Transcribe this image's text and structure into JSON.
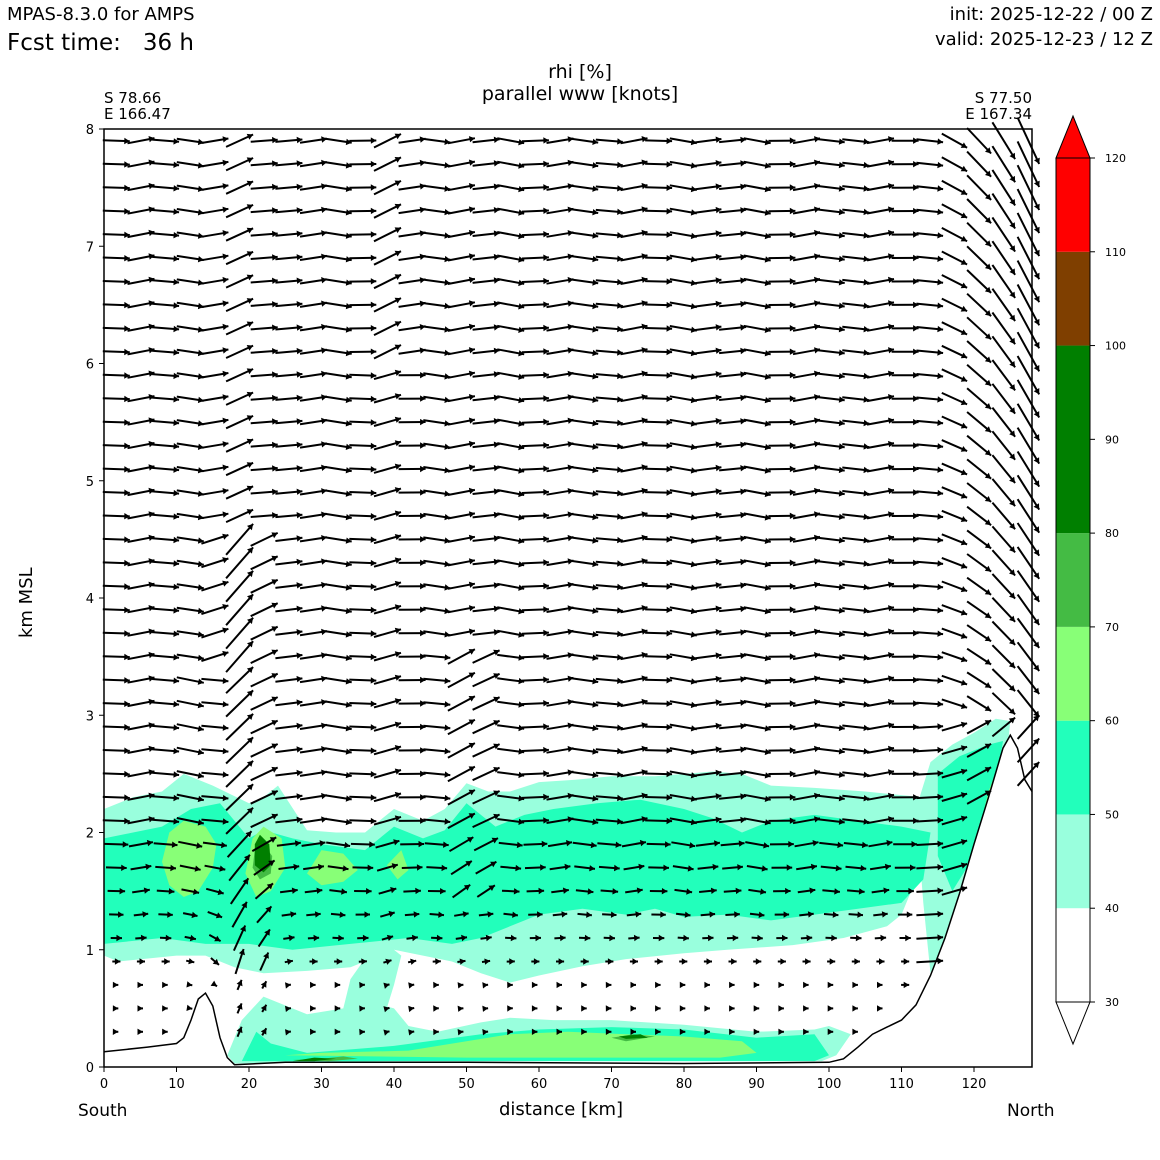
{
  "header": {
    "model": "MPAS-8.3.0 for AMPS",
    "fcst_label": "Fcst time:",
    "fcst_value": "36 h",
    "init": "init: 2025-12-22 / 00 Z",
    "valid": "valid: 2025-12-23 / 12 Z"
  },
  "corners": {
    "left_lat": "S 78.66",
    "left_lon": "E 166.47",
    "right_lat": "S 77.50",
    "right_lon": "E 167.34"
  },
  "directions": {
    "left": "South",
    "right": "North"
  },
  "chart_data": {
    "type": "heatmap",
    "title": "rhi [%]",
    "subtitle": "parallel www [knots]",
    "xlabel": "distance [km]",
    "ylabel": "km MSL",
    "xlim": [
      0,
      128
    ],
    "ylim": [
      0,
      8
    ],
    "xticks": [
      0,
      10,
      20,
      30,
      40,
      50,
      60,
      70,
      80,
      90,
      100,
      110,
      120
    ],
    "yticks": [
      0,
      1,
      2,
      3,
      4,
      5,
      6,
      7,
      8
    ],
    "terrain": [
      [
        0,
        0.13
      ],
      [
        6,
        0.17
      ],
      [
        10,
        0.2
      ],
      [
        11,
        0.25
      ],
      [
        12,
        0.4
      ],
      [
        13,
        0.58
      ],
      [
        14,
        0.63
      ],
      [
        15,
        0.52
      ],
      [
        16,
        0.25
      ],
      [
        17,
        0.08
      ],
      [
        18,
        0.02
      ],
      [
        25,
        0.04
      ],
      [
        50,
        0.04
      ],
      [
        80,
        0.03
      ],
      [
        100,
        0.04
      ],
      [
        102,
        0.07
      ],
      [
        104,
        0.17
      ],
      [
        106,
        0.28
      ],
      [
        108,
        0.34
      ],
      [
        110,
        0.4
      ],
      [
        112,
        0.53
      ],
      [
        114,
        0.78
      ],
      [
        116,
        1.1
      ],
      [
        118,
        1.48
      ],
      [
        120,
        1.9
      ],
      [
        122,
        2.3
      ],
      [
        124,
        2.72
      ],
      [
        125,
        2.83
      ],
      [
        126,
        2.72
      ],
      [
        127,
        2.45
      ],
      [
        128,
        2.35
      ]
    ],
    "rh_regions": [
      {
        "level": 40,
        "polygon": [
          [
            0,
            0.95
          ],
          [
            2,
            0.9
          ],
          [
            10,
            0.95
          ],
          [
            14,
            0.95
          ],
          [
            18,
            0.85
          ],
          [
            22,
            0.8
          ],
          [
            28,
            0.82
          ],
          [
            34,
            0.85
          ],
          [
            38,
            0.95
          ],
          [
            40,
            1.0
          ],
          [
            48,
            0.9
          ],
          [
            52,
            0.8
          ],
          [
            56,
            0.72
          ],
          [
            60,
            0.78
          ],
          [
            66,
            0.86
          ],
          [
            72,
            0.92
          ],
          [
            80,
            0.97
          ],
          [
            86,
            1.0
          ],
          [
            95,
            1.04
          ],
          [
            102,
            1.1
          ],
          [
            108,
            1.2
          ],
          [
            110,
            1.3
          ],
          [
            112,
            1.6
          ],
          [
            113,
            2.1
          ],
          [
            113,
            2.3
          ],
          [
            105,
            2.35
          ],
          [
            98,
            2.38
          ],
          [
            92,
            2.4
          ],
          [
            88,
            2.5
          ],
          [
            84,
            2.52
          ],
          [
            80,
            2.5
          ],
          [
            76,
            2.48
          ],
          [
            70,
            2.48
          ],
          [
            65,
            2.45
          ],
          [
            60,
            2.43
          ],
          [
            56,
            2.35
          ],
          [
            53,
            2.35
          ],
          [
            50,
            2.42
          ],
          [
            47,
            2.2
          ],
          [
            44,
            2.1
          ],
          [
            40,
            2.2
          ],
          [
            36,
            2.0
          ],
          [
            32,
            2.0
          ],
          [
            28,
            2.02
          ],
          [
            24,
            2.4
          ],
          [
            22,
            2.3
          ],
          [
            20,
            2.25
          ],
          [
            15,
            2.4
          ],
          [
            11,
            2.5
          ],
          [
            8,
            2.35
          ],
          [
            4,
            2.3
          ],
          [
            0,
            2.2
          ]
        ]
      },
      {
        "level": 40,
        "polygon": [
          [
            112,
            2.2
          ],
          [
            114,
            2.6
          ],
          [
            117,
            2.75
          ],
          [
            120,
            2.85
          ],
          [
            123,
            2.97
          ],
          [
            125,
            2.95
          ],
          [
            124.6,
            2.7
          ],
          [
            122,
            2.3
          ],
          [
            120,
            1.9
          ],
          [
            118,
            1.5
          ],
          [
            116,
            1.1
          ],
          [
            114,
            0.8
          ],
          [
            113,
            1.4
          ]
        ]
      },
      {
        "level": 40,
        "polygon": [
          [
            17,
            0.1
          ],
          [
            19,
            0.4
          ],
          [
            22,
            0.6
          ],
          [
            24,
            0.55
          ],
          [
            28,
            0.45
          ],
          [
            33,
            0.5
          ],
          [
            37,
            0.55
          ],
          [
            40,
            0.5
          ],
          [
            42,
            0.35
          ],
          [
            46,
            0.3
          ],
          [
            52,
            0.38
          ],
          [
            56,
            0.42
          ],
          [
            62,
            0.4
          ],
          [
            70,
            0.4
          ],
          [
            80,
            0.36
          ],
          [
            90,
            0.3
          ],
          [
            98,
            0.32
          ],
          [
            100,
            0.35
          ],
          [
            103,
            0.28
          ],
          [
            101,
            0.1
          ],
          [
            99,
            0.05
          ],
          [
            40,
            0.05
          ],
          [
            18,
            0.03
          ]
        ]
      },
      {
        "level": 40,
        "polygon": [
          [
            38,
            0.3
          ],
          [
            40,
            0.7
          ],
          [
            41,
            0.95
          ],
          [
            38,
            1.1
          ],
          [
            34,
            0.75
          ],
          [
            33,
            0.5
          ]
        ]
      },
      {
        "level": 50,
        "polygon": [
          [
            0,
            1.05
          ],
          [
            8,
            1.1
          ],
          [
            14,
            1.05
          ],
          [
            20,
            1.05
          ],
          [
            26,
            1.0
          ],
          [
            34,
            1.05
          ],
          [
            42,
            1.1
          ],
          [
            48,
            1.05
          ],
          [
            52,
            1.1
          ],
          [
            56,
            1.2
          ],
          [
            60,
            1.3
          ],
          [
            66,
            1.35
          ],
          [
            72,
            1.3
          ],
          [
            76,
            1.35
          ],
          [
            80,
            1.28
          ],
          [
            86,
            1.3
          ],
          [
            92,
            1.25
          ],
          [
            98,
            1.3
          ],
          [
            104,
            1.35
          ],
          [
            110,
            1.4
          ],
          [
            113,
            1.6
          ],
          [
            114,
            2.0
          ],
          [
            110,
            2.05
          ],
          [
            104,
            2.1
          ],
          [
            98,
            2.15
          ],
          [
            92,
            2.1
          ],
          [
            88,
            2.0
          ],
          [
            84,
            2.12
          ],
          [
            80,
            2.2
          ],
          [
            74,
            2.28
          ],
          [
            68,
            2.25
          ],
          [
            62,
            2.2
          ],
          [
            58,
            2.15
          ],
          [
            54,
            2.05
          ],
          [
            50,
            2.25
          ],
          [
            47,
            2.02
          ],
          [
            44,
            1.95
          ],
          [
            40,
            2.05
          ],
          [
            36,
            1.85
          ],
          [
            30,
            1.9
          ],
          [
            26,
            1.95
          ],
          [
            22,
            2.02
          ],
          [
            20,
            1.95
          ],
          [
            16,
            2.25
          ],
          [
            12,
            2.2
          ],
          [
            8,
            2.05
          ],
          [
            4,
            2.0
          ],
          [
            0,
            1.95
          ]
        ]
      },
      {
        "level": 50,
        "polygon": [
          [
            115,
            2.5
          ],
          [
            118,
            2.65
          ],
          [
            122,
            2.75
          ],
          [
            124,
            2.78
          ],
          [
            123.5,
            2.6
          ],
          [
            121,
            2.1
          ],
          [
            119,
            1.7
          ],
          [
            117,
            1.5
          ],
          [
            115,
            1.8
          ]
        ]
      },
      {
        "level": 50,
        "polygon": [
          [
            19,
            0.05
          ],
          [
            21,
            0.3
          ],
          [
            23,
            0.2
          ],
          [
            28,
            0.12
          ],
          [
            40,
            0.18
          ],
          [
            52,
            0.28
          ],
          [
            60,
            0.32
          ],
          [
            70,
            0.34
          ],
          [
            80,
            0.32
          ],
          [
            90,
            0.25
          ],
          [
            98,
            0.28
          ],
          [
            100,
            0.1
          ],
          [
            98,
            0.05
          ],
          [
            40,
            0.05
          ]
        ]
      },
      {
        "level": 60,
        "polygon": [
          [
            8,
            1.75
          ],
          [
            9,
            1.55
          ],
          [
            11,
            1.45
          ],
          [
            13,
            1.5
          ],
          [
            15,
            1.7
          ],
          [
            15.5,
            1.9
          ],
          [
            14,
            2.05
          ],
          [
            11,
            2.1
          ],
          [
            9,
            2.0
          ]
        ]
      },
      {
        "level": 60,
        "polygon": [
          [
            19.5,
            1.65
          ],
          [
            21,
            1.45
          ],
          [
            23,
            1.5
          ],
          [
            25,
            1.7
          ],
          [
            24.5,
            1.95
          ],
          [
            22,
            2.05
          ],
          [
            20.5,
            1.95
          ]
        ]
      },
      {
        "level": 60,
        "polygon": [
          [
            28,
            1.65
          ],
          [
            30,
            1.55
          ],
          [
            33,
            1.58
          ],
          [
            35,
            1.68
          ],
          [
            33,
            1.82
          ],
          [
            30,
            1.85
          ]
        ]
      },
      {
        "level": 60,
        "polygon": [
          [
            39,
            1.72
          ],
          [
            40.5,
            1.6
          ],
          [
            42,
            1.68
          ],
          [
            41,
            1.85
          ]
        ]
      },
      {
        "level": 60,
        "polygon": [
          [
            121,
            2.1
          ],
          [
            122,
            2.35
          ],
          [
            123.5,
            2.6
          ],
          [
            123,
            2.4
          ],
          [
            122.5,
            2.05
          ]
        ]
      },
      {
        "level": 60,
        "polygon": [
          [
            25,
            0.1
          ],
          [
            30,
            0.12
          ],
          [
            42,
            0.14
          ],
          [
            50,
            0.22
          ],
          [
            56,
            0.28
          ],
          [
            64,
            0.3
          ],
          [
            72,
            0.28
          ],
          [
            80,
            0.26
          ],
          [
            88,
            0.22
          ],
          [
            90,
            0.12
          ],
          [
            85,
            0.08
          ],
          [
            70,
            0.08
          ],
          [
            50,
            0.08
          ]
        ]
      },
      {
        "level": 70,
        "polygon": [
          [
            20.5,
            1.7
          ],
          [
            21.5,
            1.6
          ],
          [
            23,
            1.65
          ],
          [
            23.2,
            1.8
          ],
          [
            22,
            1.9
          ],
          [
            20.8,
            1.85
          ]
        ]
      },
      {
        "level": 70,
        "polygon": [
          [
            26,
            0.06
          ],
          [
            30,
            0.07
          ],
          [
            33,
            0.09
          ],
          [
            35,
            0.07
          ],
          [
            31,
            0.05
          ]
        ]
      },
      {
        "level": 70,
        "polygon": [
          [
            70,
            0.25
          ],
          [
            73,
            0.28
          ],
          [
            76,
            0.26
          ],
          [
            72,
            0.22
          ]
        ]
      },
      {
        "level": 80,
        "polygon": [
          [
            20.8,
            1.72
          ],
          [
            22,
            1.66
          ],
          [
            23,
            1.72
          ],
          [
            22.8,
            1.9
          ],
          [
            21.5,
            1.98
          ],
          [
            20.8,
            1.9
          ]
        ]
      },
      {
        "level": 80,
        "polygon": [
          [
            26,
            0.05
          ],
          [
            29,
            0.08
          ],
          [
            32,
            0.07
          ],
          [
            29,
            0.05
          ]
        ]
      },
      {
        "level": 80,
        "polygon": [
          [
            71,
            0.26
          ],
          [
            74,
            0.28
          ],
          [
            75,
            0.25
          ],
          [
            72,
            0.24
          ]
        ]
      }
    ],
    "colorbar": {
      "levels": [
        30,
        40,
        50,
        60,
        70,
        80,
        90,
        100,
        110,
        120
      ],
      "colors": [
        {
          "from": 30,
          "to": 40,
          "color": "#ffffff"
        },
        {
          "from": 40,
          "to": 50,
          "color": "#99ffdd"
        },
        {
          "from": 50,
          "to": 60,
          "color": "#22ffbb"
        },
        {
          "from": 60,
          "to": 70,
          "color": "#88ff77"
        },
        {
          "from": 70,
          "to": 80,
          "color": "#44bb44"
        },
        {
          "from": 80,
          "to": 100,
          "color": "#007f00"
        },
        {
          "from": 100,
          "to": 110,
          "color": "#7f3f00"
        },
        {
          "from": 110,
          "to": 120,
          "color": "#ff0000"
        }
      ]
    },
    "wind_vectors": {
      "x_positions_km": [
        1.7,
        5.1,
        8.5,
        11.9,
        15.3,
        18.7,
        22.1,
        25.5,
        28.9,
        32.3,
        35.7,
        39.1,
        42.5,
        45.9,
        49.3,
        52.7,
        56.1,
        59.5,
        62.9,
        66.3,
        69.7,
        73.1,
        76.5,
        79.9,
        83.3,
        86.7,
        90.1,
        93.5,
        96.9,
        100.3,
        103.7,
        107.1,
        110.5,
        113.9,
        117.3,
        120.7,
        124.1,
        127.5
      ],
      "z_positions_km": [
        0.3,
        0.5,
        0.7,
        0.9,
        1.1,
        1.3,
        1.5,
        1.7,
        1.9,
        2.1,
        2.3,
        2.5,
        2.7,
        2.9,
        3.1,
        3.3,
        3.5,
        3.7,
        3.9,
        4.1,
        4.3,
        4.5,
        4.7,
        4.9,
        5.1,
        5.3,
        5.5,
        5.7,
        5.9,
        6.1,
        6.3,
        6.5,
        6.7,
        6.9,
        7.1,
        7.3,
        7.5,
        7.7,
        7.9
      ],
      "speed_unit": "knots"
    }
  }
}
